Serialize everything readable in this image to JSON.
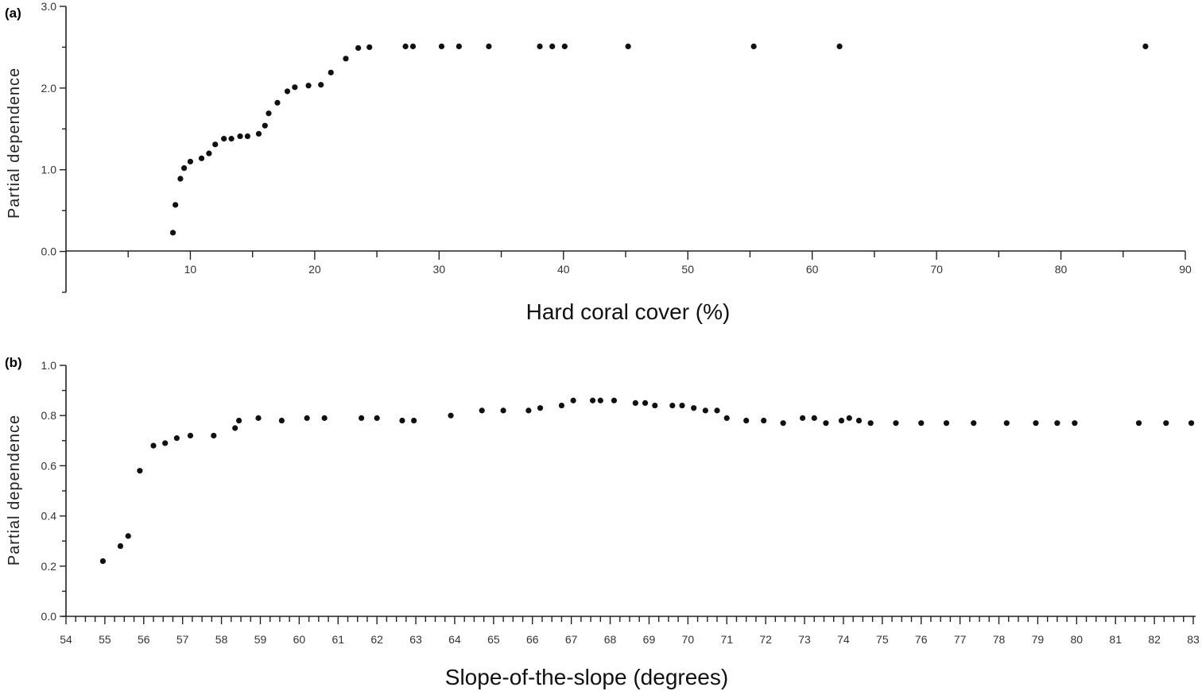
{
  "chart_data": [
    {
      "type": "scatter",
      "panel_label": "(a)",
      "xlabel": "Hard coral cover (%)",
      "ylabel": "Partial  dependence",
      "xlim": [
        0,
        90
      ],
      "ylim": [
        -0.5,
        3.0
      ],
      "x_ticks": [
        10,
        20,
        30,
        40,
        50,
        60,
        70,
        80,
        90
      ],
      "y_ticks": [
        "0.0",
        "1.0",
        "2.0",
        "3.0"
      ],
      "y_minor_step": 0.5,
      "x_minor_step": 5,
      "grid": false,
      "points": [
        {
          "x": 8.6,
          "y": 0.23
        },
        {
          "x": 8.8,
          "y": 0.57
        },
        {
          "x": 9.2,
          "y": 0.89
        },
        {
          "x": 9.5,
          "y": 1.02
        },
        {
          "x": 10.0,
          "y": 1.1
        },
        {
          "x": 10.9,
          "y": 1.14
        },
        {
          "x": 11.5,
          "y": 1.2
        },
        {
          "x": 12.0,
          "y": 1.31
        },
        {
          "x": 12.7,
          "y": 1.38
        },
        {
          "x": 13.3,
          "y": 1.38
        },
        {
          "x": 14.0,
          "y": 1.41
        },
        {
          "x": 14.6,
          "y": 1.41
        },
        {
          "x": 15.5,
          "y": 1.44
        },
        {
          "x": 16.0,
          "y": 1.54
        },
        {
          "x": 16.3,
          "y": 1.69
        },
        {
          "x": 17.0,
          "y": 1.82
        },
        {
          "x": 17.8,
          "y": 1.96
        },
        {
          "x": 18.4,
          "y": 2.01
        },
        {
          "x": 19.5,
          "y": 2.03
        },
        {
          "x": 20.5,
          "y": 2.04
        },
        {
          "x": 21.3,
          "y": 2.19
        },
        {
          "x": 22.5,
          "y": 2.36
        },
        {
          "x": 23.5,
          "y": 2.49
        },
        {
          "x": 24.4,
          "y": 2.5
        },
        {
          "x": 27.3,
          "y": 2.51
        },
        {
          "x": 27.9,
          "y": 2.51
        },
        {
          "x": 30.2,
          "y": 2.51
        },
        {
          "x": 31.6,
          "y": 2.51
        },
        {
          "x": 34.0,
          "y": 2.51
        },
        {
          "x": 38.1,
          "y": 2.51
        },
        {
          "x": 39.1,
          "y": 2.51
        },
        {
          "x": 40.1,
          "y": 2.51
        },
        {
          "x": 45.2,
          "y": 2.51
        },
        {
          "x": 55.3,
          "y": 2.51
        },
        {
          "x": 62.2,
          "y": 2.51
        },
        {
          "x": 86.8,
          "y": 2.51
        }
      ]
    },
    {
      "type": "scatter",
      "panel_label": "(b)",
      "xlabel": "Slope-of-the-slope (degrees)",
      "ylabel": "Partial  dependence",
      "xlim": [
        54,
        83
      ],
      "ylim": [
        0.0,
        1.0
      ],
      "x_ticks": [
        "54",
        "55",
        "56",
        "57",
        "58",
        "59",
        "60",
        "61",
        "62",
        "63",
        "64",
        "65",
        "66",
        "67",
        "68",
        "69",
        "70",
        "71",
        "72",
        "73",
        "74",
        "75",
        "76",
        "77",
        "78",
        "79",
        "80",
        "81",
        "82",
        "83"
      ],
      "y_ticks": [
        "0.0",
        "0.2",
        "0.4",
        "0.6",
        "0.8",
        "1.0"
      ],
      "y_minor_step": 0.1,
      "x_minor_step": 0.25,
      "grid": false,
      "points": [
        {
          "x": 54.95,
          "y": 0.22
        },
        {
          "x": 55.4,
          "y": 0.28
        },
        {
          "x": 55.6,
          "y": 0.32
        },
        {
          "x": 55.9,
          "y": 0.58
        },
        {
          "x": 56.25,
          "y": 0.68
        },
        {
          "x": 56.55,
          "y": 0.69
        },
        {
          "x": 56.85,
          "y": 0.71
        },
        {
          "x": 57.2,
          "y": 0.72
        },
        {
          "x": 57.8,
          "y": 0.72
        },
        {
          "x": 58.35,
          "y": 0.75
        },
        {
          "x": 58.45,
          "y": 0.78
        },
        {
          "x": 58.95,
          "y": 0.79
        },
        {
          "x": 59.55,
          "y": 0.78
        },
        {
          "x": 60.2,
          "y": 0.79
        },
        {
          "x": 60.65,
          "y": 0.79
        },
        {
          "x": 61.6,
          "y": 0.79
        },
        {
          "x": 62.0,
          "y": 0.79
        },
        {
          "x": 62.65,
          "y": 0.78
        },
        {
          "x": 62.95,
          "y": 0.78
        },
        {
          "x": 63.9,
          "y": 0.8
        },
        {
          "x": 64.7,
          "y": 0.82
        },
        {
          "x": 65.25,
          "y": 0.82
        },
        {
          "x": 65.9,
          "y": 0.82
        },
        {
          "x": 66.2,
          "y": 0.83
        },
        {
          "x": 66.75,
          "y": 0.84
        },
        {
          "x": 67.05,
          "y": 0.86
        },
        {
          "x": 67.55,
          "y": 0.86
        },
        {
          "x": 67.75,
          "y": 0.86
        },
        {
          "x": 68.1,
          "y": 0.86
        },
        {
          "x": 68.65,
          "y": 0.85
        },
        {
          "x": 68.9,
          "y": 0.85
        },
        {
          "x": 69.15,
          "y": 0.84
        },
        {
          "x": 69.6,
          "y": 0.84
        },
        {
          "x": 69.85,
          "y": 0.84
        },
        {
          "x": 70.15,
          "y": 0.83
        },
        {
          "x": 70.45,
          "y": 0.82
        },
        {
          "x": 70.75,
          "y": 0.82
        },
        {
          "x": 71.0,
          "y": 0.79
        },
        {
          "x": 71.5,
          "y": 0.78
        },
        {
          "x": 71.95,
          "y": 0.78
        },
        {
          "x": 72.45,
          "y": 0.77
        },
        {
          "x": 72.95,
          "y": 0.79
        },
        {
          "x": 73.25,
          "y": 0.79
        },
        {
          "x": 73.55,
          "y": 0.77
        },
        {
          "x": 73.95,
          "y": 0.78
        },
        {
          "x": 74.15,
          "y": 0.79
        },
        {
          "x": 74.4,
          "y": 0.78
        },
        {
          "x": 74.7,
          "y": 0.77
        },
        {
          "x": 75.35,
          "y": 0.77
        },
        {
          "x": 76.0,
          "y": 0.77
        },
        {
          "x": 76.65,
          "y": 0.77
        },
        {
          "x": 77.35,
          "y": 0.77
        },
        {
          "x": 78.2,
          "y": 0.77
        },
        {
          "x": 78.95,
          "y": 0.77
        },
        {
          "x": 79.5,
          "y": 0.77
        },
        {
          "x": 79.95,
          "y": 0.77
        },
        {
          "x": 81.6,
          "y": 0.77
        },
        {
          "x": 82.3,
          "y": 0.77
        },
        {
          "x": 82.95,
          "y": 0.77
        }
      ]
    }
  ]
}
